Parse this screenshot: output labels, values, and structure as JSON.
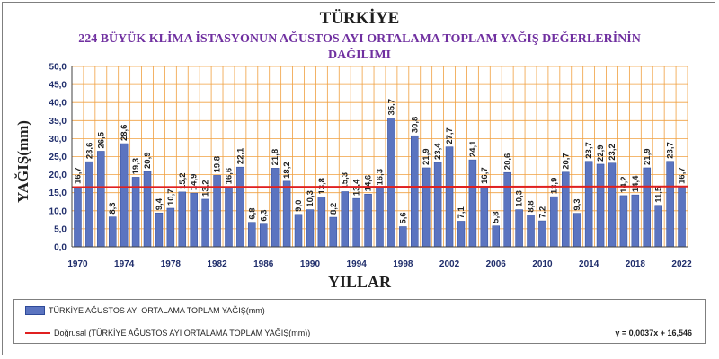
{
  "title": "TÜRKİYE",
  "subtitle_line1": "224 BÜYÜK KLİMA İSTASYONUN AĞUSTOS  AYI  ORTALAMA TOPLAM  YAĞIŞ DEĞERLERİNİN",
  "subtitle_line2": "DAĞILIMI",
  "legend": {
    "series_label": "TÜRKİYE AĞUSTOS AYI ORTALAMA TOPLAM YAĞIŞ(mm)",
    "trend_label": "Doğrusal (TÜRKİYE AĞUSTOS AYI ORTALAMA TOPLAM YAĞIŞ(mm))",
    "equation": "y = 0,0037x + 16,546"
  },
  "colors": {
    "bar": "#5b74c0",
    "bar_border": "#2e4a99",
    "trend": "#e02020",
    "grid": "#f0a040",
    "plot_bg": "#ffffff",
    "title": "#1f1f1f",
    "subtitle": "#7030a0",
    "axis_text": "#1f2d6b"
  },
  "chart_data": {
    "type": "bar",
    "title": "TÜRKİYE",
    "xlabel": "YILLAR",
    "ylabel": "YAĞIŞ(mm)",
    "ylim": [
      0,
      50
    ],
    "yticks": [
      "0,0",
      "5,0",
      "10,0",
      "15,0",
      "20,0",
      "25,0",
      "30,0",
      "35,0",
      "40,0",
      "45,0",
      "50,0"
    ],
    "xticks": [
      "1970",
      "1974",
      "1978",
      "1982",
      "1986",
      "1990",
      "1994",
      "1998",
      "2002",
      "2006",
      "2010",
      "2014",
      "2018",
      "2022"
    ],
    "grid": true,
    "categories": [
      1970,
      1971,
      1972,
      1973,
      1974,
      1975,
      1976,
      1977,
      1978,
      1979,
      1980,
      1981,
      1982,
      1983,
      1984,
      1985,
      1986,
      1987,
      1988,
      1989,
      1990,
      1991,
      1992,
      1993,
      1994,
      1995,
      1996,
      1997,
      1998,
      1999,
      2000,
      2001,
      2002,
      2003,
      2004,
      2005,
      2006,
      2007,
      2008,
      2009,
      2010,
      2011,
      2012,
      2013,
      2014,
      2015,
      2016,
      2017,
      2018,
      2019,
      2020,
      2021,
      2022
    ],
    "values": [
      16.7,
      23.6,
      26.5,
      8.3,
      28.6,
      19.3,
      20.9,
      9.4,
      10.7,
      15.2,
      14.9,
      13.2,
      19.8,
      16.6,
      22.1,
      6.8,
      6.3,
      21.8,
      18.2,
      9.0,
      10.3,
      13.8,
      8.2,
      15.3,
      13.4,
      14.6,
      16.3,
      35.7,
      5.6,
      30.8,
      21.9,
      23.4,
      27.7,
      7.1,
      24.1,
      16.7,
      5.8,
      20.6,
      10.3,
      8.8,
      7.2,
      13.9,
      20.7,
      9.3,
      23.7,
      22.9,
      23.2,
      14.2,
      14.4,
      21.9,
      11.5,
      23.7,
      16.7
    ],
    "labels": [
      "16,7",
      "23,6",
      "26,5",
      "8,3",
      "28,6",
      "19,3",
      "20,9",
      "9,4",
      "10,7",
      "15,2",
      "14,9",
      "13,2",
      "19,8",
      "16,6",
      "22,1",
      "6,8",
      "6,3",
      "21,8",
      "18,2",
      "9,0",
      "10,3",
      "13,8",
      "8,2",
      "15,3",
      "13,4",
      "14,6",
      "16,3",
      "35,7",
      "5,6",
      "30,8",
      "21,9",
      "23,4",
      "27,7",
      "7,1",
      "24,1",
      "16,7",
      "5,8",
      "20,6",
      "10,3",
      "8,8",
      "7,2",
      "13,9",
      "20,7",
      "9,3",
      "23,7",
      "22,9",
      "23,2",
      "14,2",
      "14,4",
      "21,9",
      "11,5",
      "23,7",
      "16,7"
    ],
    "trendline": {
      "type": "linear",
      "slope": 0.0037,
      "intercept": 16.546
    }
  }
}
